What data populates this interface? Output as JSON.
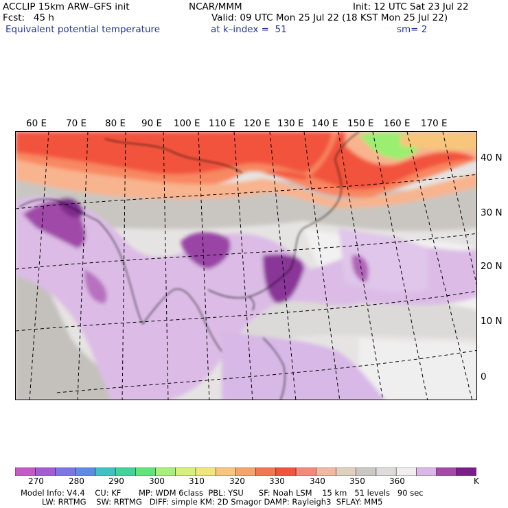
{
  "header": {
    "model": "ACCLIP 15km ARW–GFS init",
    "org": "NCAR/MMM",
    "init": "Init: 12 UTC Sat 23 Jul 22",
    "fcst": "Fcst:   45 h",
    "valid": "Valid: 09 UTC Mon 25 Jul 22 (18 KST Mon 25 Jul 22)",
    "field": "Equivalent potential temperature",
    "level": "at k–index =  51",
    "smooth": "sm= 2"
  },
  "map": {
    "lon_labels": [
      "60 E",
      "70 E",
      "80 E",
      "90 E",
      "100 E",
      "110 E",
      "120 E",
      "130 E",
      "140 E",
      "150 E",
      "160 E",
      "170 E"
    ],
    "lat_labels": [
      "40 N",
      "30 N",
      "20 N",
      "10 N",
      "0"
    ],
    "colors": {
      "warm_core": "#f2533c",
      "warm_mid": "#f88862",
      "warm_edge": "#f8b48e",
      "green": "#9aef70",
      "grey_dark": "#c8c5c0",
      "grey_light": "#dcdad8",
      "white": "#f2f1f1",
      "lilac": "#d8b8e6",
      "purple": "#a04aa8",
      "purple_dark": "#7e2a8e"
    }
  },
  "colorbar": {
    "colors": [
      "#c758c7",
      "#a35bd6",
      "#7f74e6",
      "#5f8ae6",
      "#3fc2c2",
      "#3fd49a",
      "#5fe67a",
      "#a8f07a",
      "#d6f07a",
      "#f0e67a",
      "#f7c67a",
      "#f7a46a",
      "#f5764e",
      "#f2533c",
      "#f5887a",
      "#f2b8a0",
      "#e0d0c0",
      "#cbc8c4",
      "#dedcda",
      "#f0eeee",
      "#dcb6e8",
      "#a44aa8",
      "#7a1e8a"
    ],
    "labels": [
      "270",
      "280",
      "290",
      "300",
      "310",
      "320",
      "330",
      "340",
      "350",
      "360",
      "K"
    ]
  },
  "footer": {
    "line1": "Model Info: V4.4    CU: KF       MP: WDM 6class  PBL: YSU      SF: Noah LSM    15 km   51 levels   90 sec",
    "line2": "LW: RRTMG    SW: RRTMG   DIFF: simple KM: 2D Smagor DAMP: Rayleigh3  SFLAY: MM5"
  }
}
